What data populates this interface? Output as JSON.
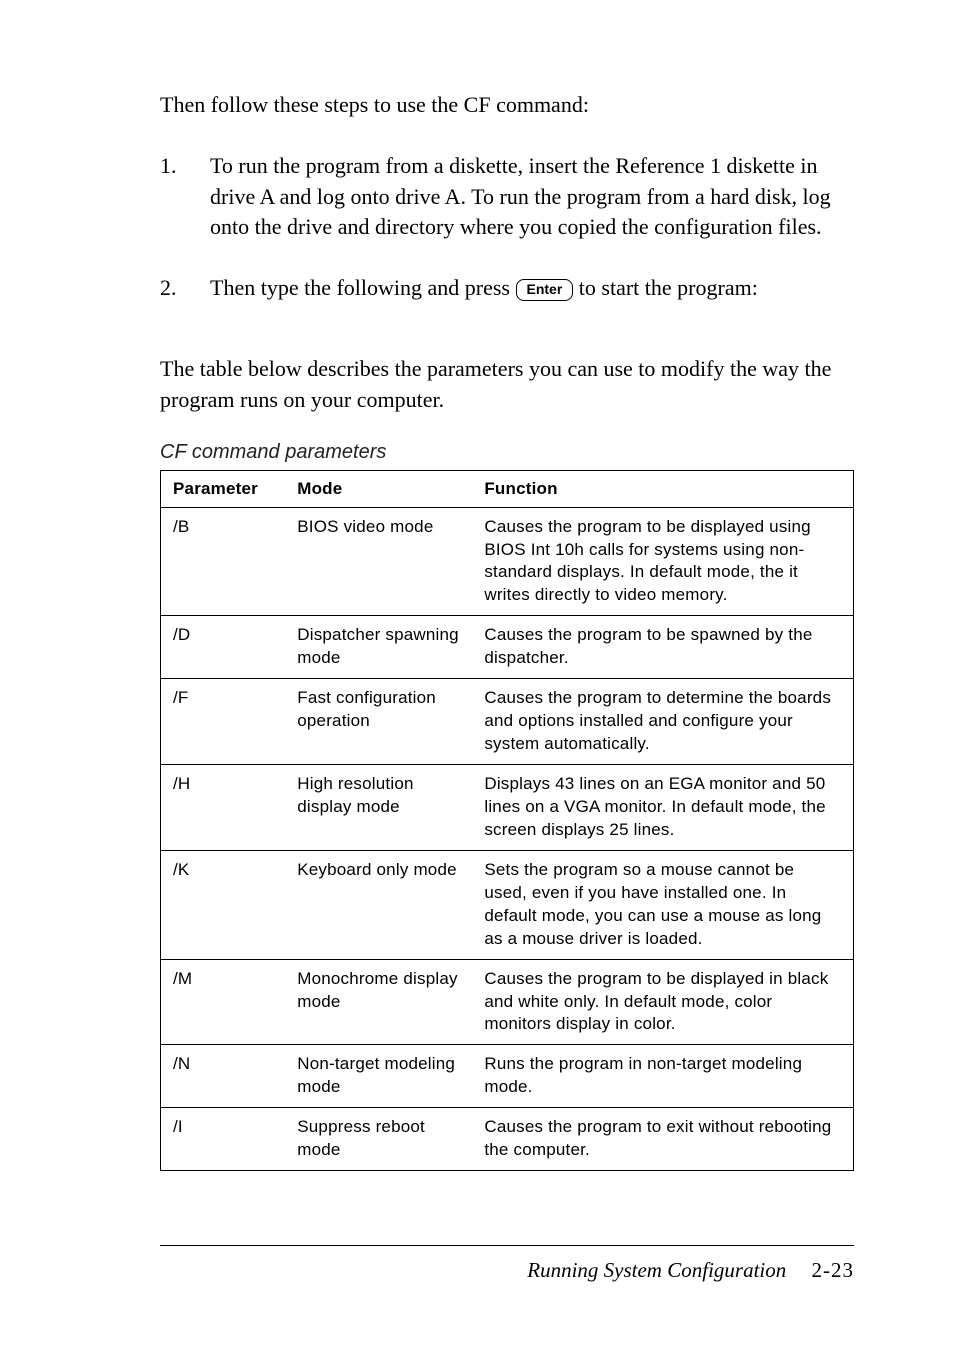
{
  "intro": "Then follow these steps to use the CF command:",
  "steps": [
    {
      "num": "1.",
      "text": "To run the program from a diskette, insert the Reference 1 diskette in drive A and log onto drive A. To run the program from a hard disk, log onto the drive and directory where you copied the configuration files."
    },
    {
      "num": "2.",
      "text_before": "Then type the following and press ",
      "key": "Enter",
      "text_after": " to start the program:"
    }
  ],
  "para": "The table below describes the parameters you can use to modify the way the program runs on your computer.",
  "table": {
    "caption": "CF command parameters",
    "columns": [
      "Parameter",
      "Mode",
      "Function"
    ],
    "rows": [
      [
        "/B",
        "BIOS video mode",
        "Causes the program to be displayed using BIOS Int 10h calls for systems using non-standard displays. In default mode, the it writes directly to video memory."
      ],
      [
        "/D",
        "Dispatcher spawning mode",
        "Causes the program to be spawned by the dispatcher."
      ],
      [
        "/F",
        "Fast configuration operation",
        "Causes the program to determine the boards and options installed and configure your system automatically."
      ],
      [
        "/H",
        "High resolution display mode",
        "Displays 43 lines on an EGA monitor and 50 lines on a VGA monitor. In default mode, the screen displays 25 lines."
      ],
      [
        "/K",
        "Keyboard only mode",
        "Sets the program so a mouse cannot be used, even if you have installed one. In default mode, you can use a mouse as long as a mouse driver is loaded."
      ],
      [
        "/M",
        "Monochrome display mode",
        "Causes the program to be displayed in black and white only. In default mode, color monitors display in color."
      ],
      [
        "/N",
        "Non-target modeling mode",
        "Runs the program in non-target modeling mode."
      ],
      [
        "/I",
        "Suppress reboot mode",
        "Causes the program to exit without rebooting the computer."
      ]
    ]
  },
  "footer": {
    "title": "Running System Configuration",
    "page": "2-23"
  }
}
